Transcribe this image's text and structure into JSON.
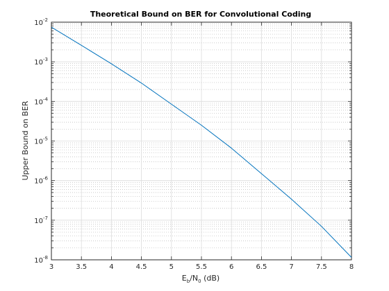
{
  "chart_data": {
    "type": "line",
    "title": "Theoretical Bound on BER for Convolutional Coding",
    "xlabel": {
      "base": "E",
      "sub1": "b",
      "mid": "/N",
      "sub2": "0",
      "suffix": " (dB)"
    },
    "ylabel": "Upper Bound on BER",
    "xlim": [
      3,
      8
    ],
    "ylim": [
      1e-08,
      0.01
    ],
    "yscale": "log",
    "grid": true,
    "minor_grid": true,
    "xticks": [
      3,
      3.5,
      4,
      4.5,
      5,
      5.5,
      6,
      6.5,
      7,
      7.5,
      8
    ],
    "xtick_labels": [
      "3",
      "3.5",
      "4",
      "4.5",
      "5",
      "5.5",
      "6",
      "6.5",
      "7",
      "7.5",
      "8"
    ],
    "yticks": [
      {
        "value": 1e-08,
        "base": "10",
        "exp": "-8"
      },
      {
        "value": 1e-07,
        "base": "10",
        "exp": "-7"
      },
      {
        "value": 1e-06,
        "base": "10",
        "exp": "-6"
      },
      {
        "value": 1e-05,
        "base": "10",
        "exp": "-5"
      },
      {
        "value": 0.0001,
        "base": "10",
        "exp": "-4"
      },
      {
        "value": 0.001,
        "base": "10",
        "exp": "-3"
      },
      {
        "value": 0.01,
        "base": "10",
        "exp": "-2"
      }
    ],
    "series": [
      {
        "color": "#0072BD",
        "x": [
          3,
          3.5,
          4,
          4.5,
          5,
          5.5,
          6,
          6.5,
          7,
          7.5,
          8
        ],
        "y": [
          0.0075,
          0.0026,
          0.00089,
          0.00029,
          8.5e-05,
          2.5e-05,
          6.6e-06,
          1.5e-06,
          3.4e-07,
          7e-08,
          1.15e-08
        ]
      }
    ]
  }
}
